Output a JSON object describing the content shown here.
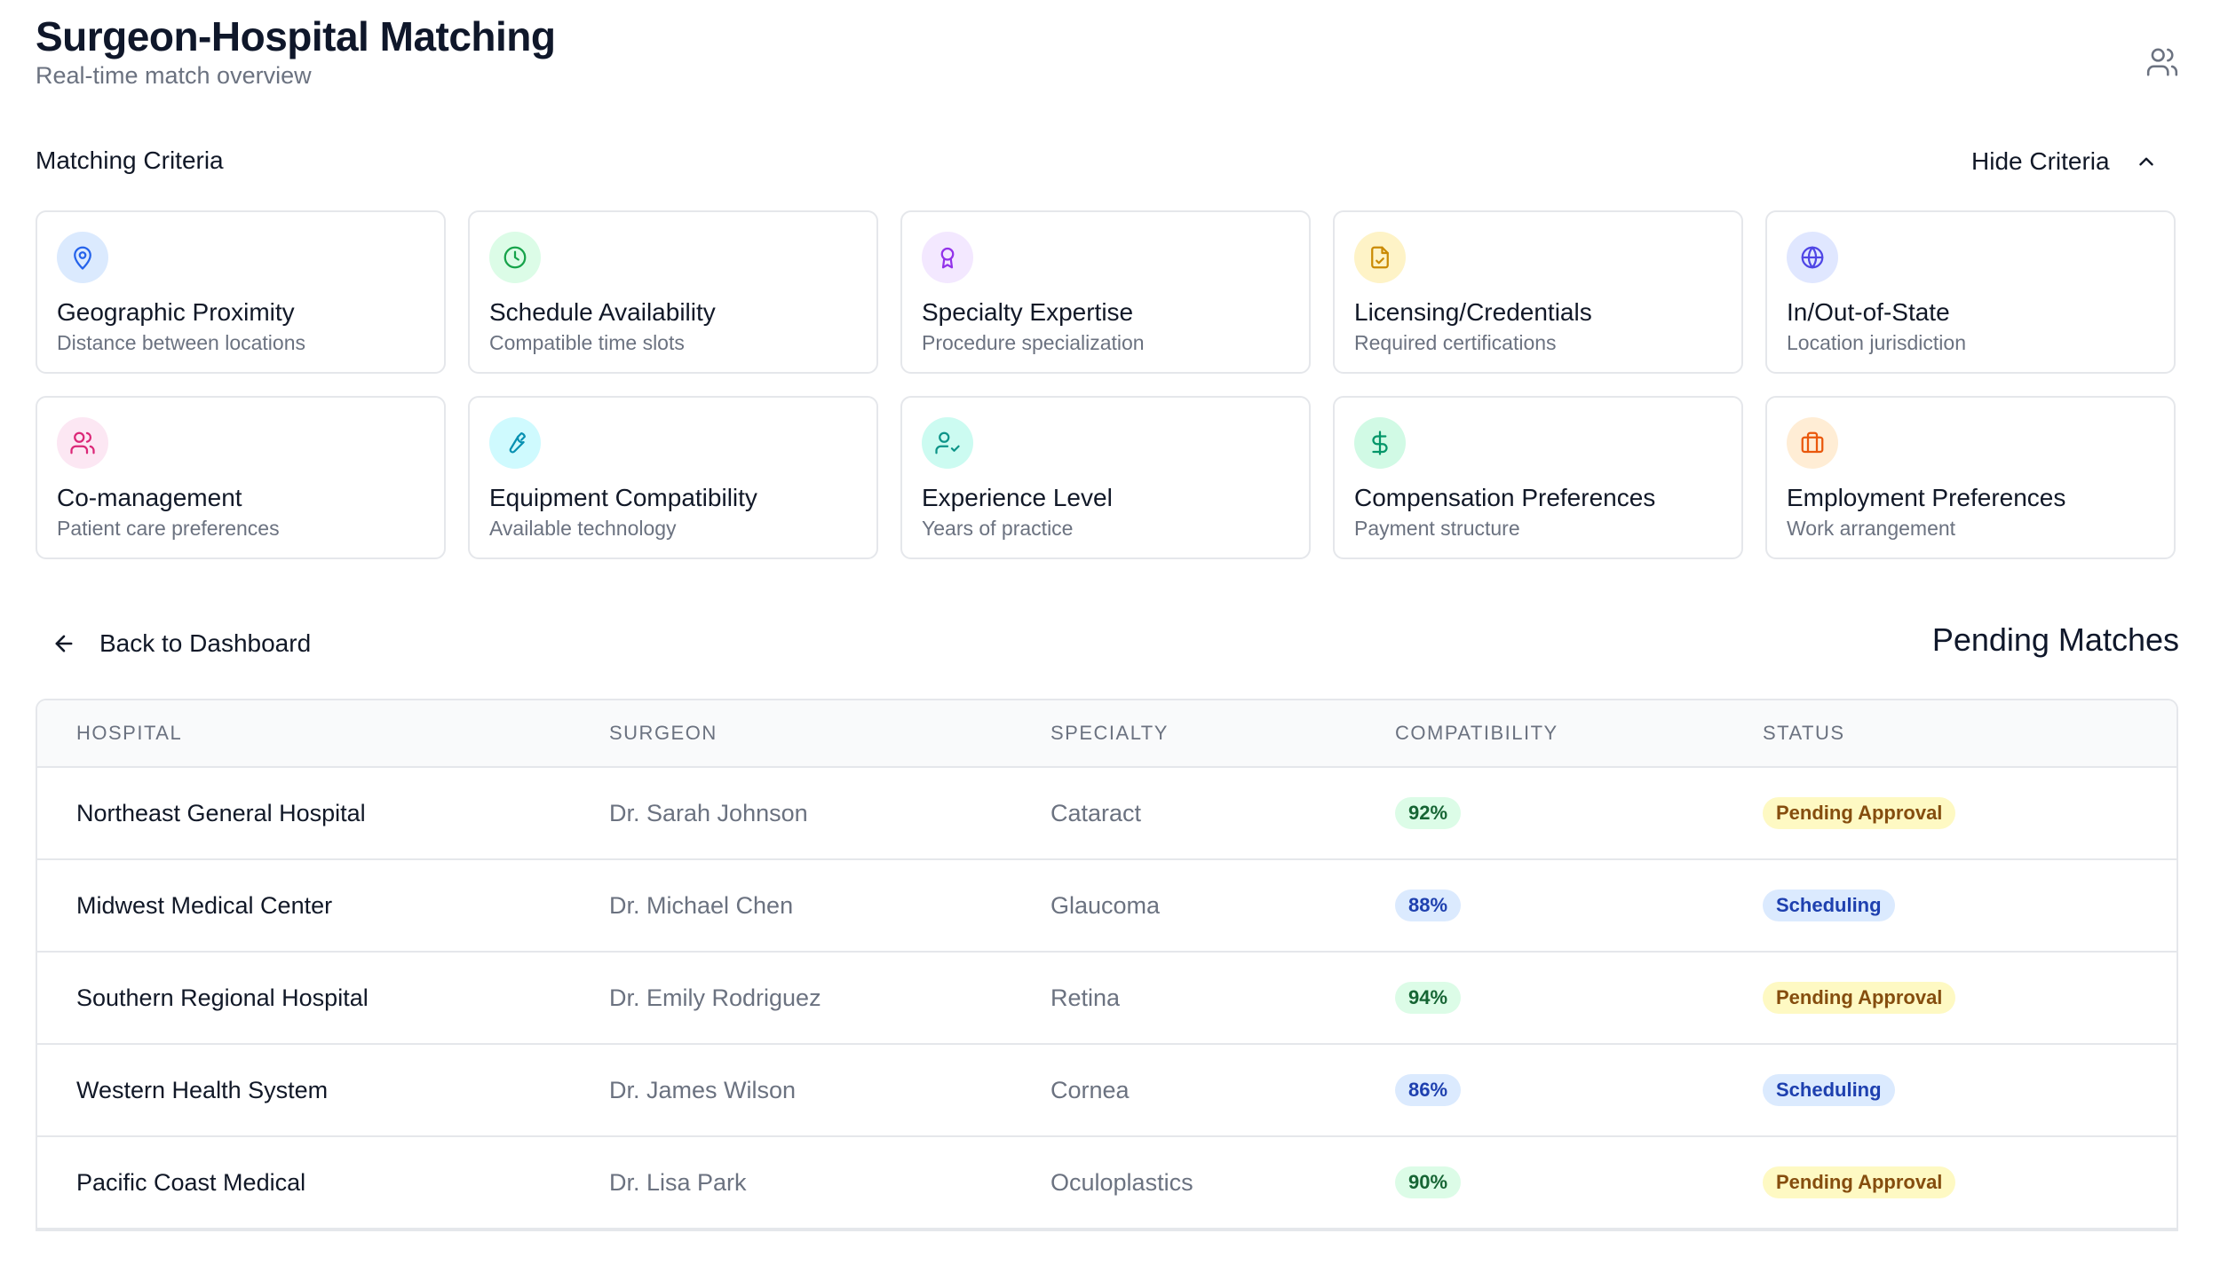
{
  "header": {
    "title": "Surgeon-Hospital Matching",
    "subtitle": "Real-time match overview",
    "profile_icon": "users-icon"
  },
  "criteria": {
    "heading": "Matching Criteria",
    "toggle_label": "Hide Criteria",
    "items": [
      {
        "title": "Geographic Proximity",
        "description": "Distance between locations",
        "icon": "map-pin-icon",
        "icon_color": "#2563eb",
        "bg_color": "#dbeafe"
      },
      {
        "title": "Schedule Availability",
        "description": "Compatible time slots",
        "icon": "clock-icon",
        "icon_color": "#16a34a",
        "bg_color": "#dcfce7"
      },
      {
        "title": "Specialty Expertise",
        "description": "Procedure specialization",
        "icon": "award-icon",
        "icon_color": "#9333ea",
        "bg_color": "#f3e8ff"
      },
      {
        "title": "Licensing/Credentials",
        "description": "Required certifications",
        "icon": "file-check-icon",
        "icon_color": "#ca8a04",
        "bg_color": "#fef3c7"
      },
      {
        "title": "In/Out-of-State",
        "description": "Location jurisdiction",
        "icon": "globe-icon",
        "icon_color": "#4f46e5",
        "bg_color": "#e0e7ff"
      },
      {
        "title": "Co-management",
        "description": "Patient care preferences",
        "icon": "users-icon",
        "icon_color": "#db2777",
        "bg_color": "#fce7f3"
      },
      {
        "title": "Equipment Compatibility",
        "description": "Available technology",
        "icon": "wrench-icon",
        "icon_color": "#0891b2",
        "bg_color": "#cffafe"
      },
      {
        "title": "Experience Level",
        "description": "Years of practice",
        "icon": "user-check-icon",
        "icon_color": "#0d9488",
        "bg_color": "#ccfbf1"
      },
      {
        "title": "Compensation Preferences",
        "description": "Payment structure",
        "icon": "dollar-icon",
        "icon_color": "#059669",
        "bg_color": "#d1fae5"
      },
      {
        "title": "Employment Preferences",
        "description": "Work arrangement",
        "icon": "briefcase-icon",
        "icon_color": "#ea580c",
        "bg_color": "#ffedd5"
      }
    ]
  },
  "nav": {
    "back_label": "Back to Dashboard"
  },
  "matches": {
    "title": "Pending Matches",
    "columns": [
      "HOSPITAL",
      "SURGEON",
      "SPECIALTY",
      "COMPATIBILITY",
      "STATUS"
    ],
    "rows": [
      {
        "hospital": "Northeast General Hospital",
        "surgeon": "Dr. Sarah Johnson",
        "specialty": "Cataract",
        "compatibility": "92%",
        "status": "Pending Approval"
      },
      {
        "hospital": "Midwest Medical Center",
        "surgeon": "Dr. Michael Chen",
        "specialty": "Glaucoma",
        "compatibility": "88%",
        "status": "Scheduling"
      },
      {
        "hospital": "Southern Regional Hospital",
        "surgeon": "Dr. Emily Rodriguez",
        "specialty": "Retina",
        "compatibility": "94%",
        "status": "Pending Approval"
      },
      {
        "hospital": "Western Health System",
        "surgeon": "Dr. James Wilson",
        "specialty": "Cornea",
        "compatibility": "86%",
        "status": "Scheduling"
      },
      {
        "hospital": "Pacific Coast Medical",
        "surgeon": "Dr. Lisa Park",
        "specialty": "Oculoplastics",
        "compatibility": "90%",
        "status": "Pending Approval"
      }
    ]
  }
}
